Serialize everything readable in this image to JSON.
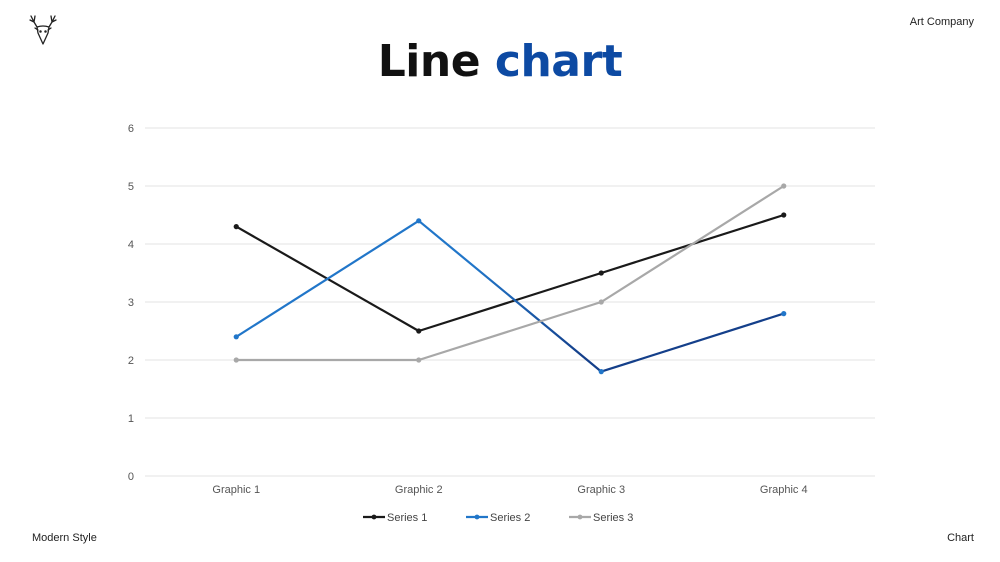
{
  "header": {
    "company": "Art Company",
    "title_part1": "Line",
    "title_part2": "chart"
  },
  "footer": {
    "left": "Modern Style",
    "right": "Chart"
  },
  "logo": {
    "icon": "deer-head-icon"
  },
  "colors": {
    "accent": "#0d4aa3",
    "series1": "#1a1a1a",
    "series2_start": "#2176c9",
    "series2_end": "#143f8a",
    "series3": "#a8a8a8",
    "grid": "#e3e3e3"
  },
  "chart_data": {
    "type": "line",
    "categories": [
      "Graphic 1",
      "Graphic 2",
      "Graphic 3",
      "Graphic 4"
    ],
    "series": [
      {
        "name": "Series 1",
        "values": [
          4.3,
          2.5,
          3.5,
          4.5
        ]
      },
      {
        "name": "Series 2",
        "values": [
          2.4,
          4.4,
          1.8,
          2.8
        ]
      },
      {
        "name": "Series 3",
        "values": [
          2.0,
          2.0,
          3.0,
          5.0
        ]
      }
    ],
    "ylim": [
      0,
      6
    ],
    "yticks": [
      0,
      1,
      2,
      3,
      4,
      5,
      6
    ],
    "grid": true,
    "legend_position": "bottom"
  }
}
